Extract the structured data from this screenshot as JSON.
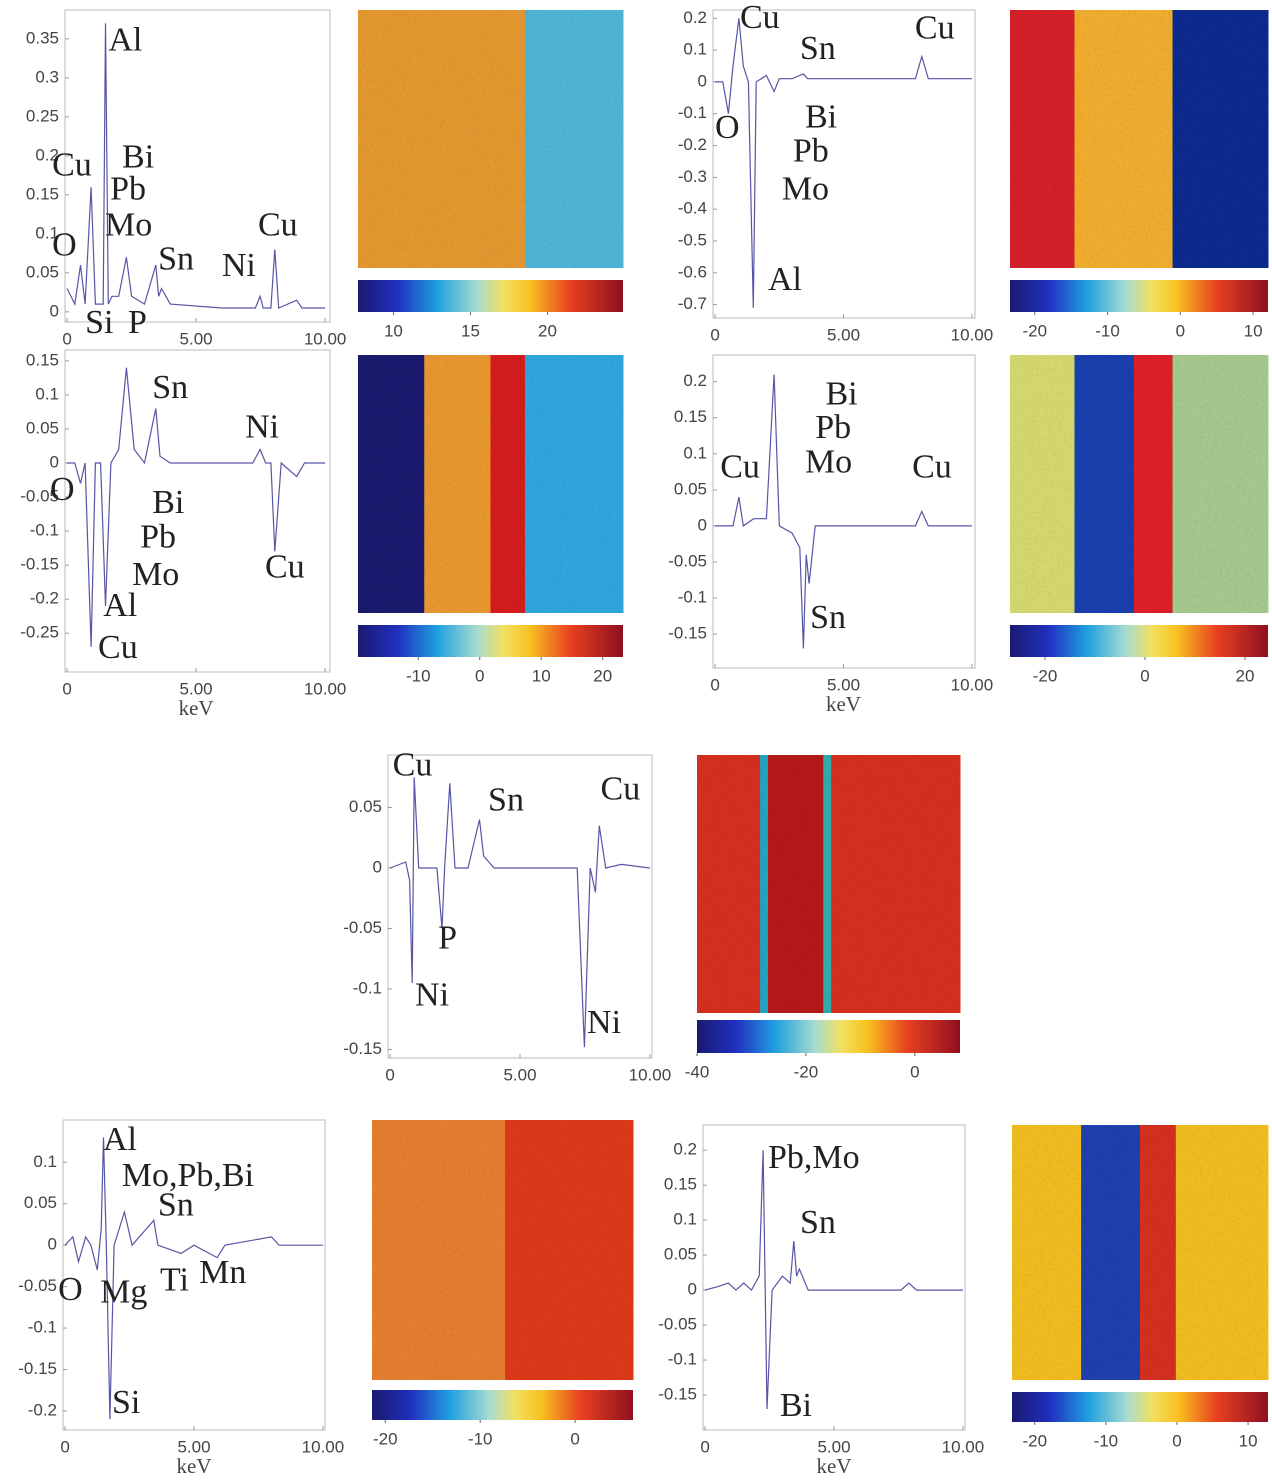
{
  "chart_data": [
    {
      "type": "line",
      "color": "#5656a6",
      "x": [
        0,
        0.3,
        0.52,
        0.7,
        0.93,
        1.1,
        1.4,
        1.49,
        1.6,
        1.74,
        2.0,
        2.3,
        2.5,
        3.0,
        3.44,
        3.55,
        3.66,
        4,
        6,
        7.3,
        7.48,
        7.6,
        7.9,
        8.05,
        8.2,
        8.9,
        9.1,
        10
      ],
      "values": [
        0.03,
        0.01,
        0.06,
        0.01,
        0.16,
        0.01,
        0.01,
        0.37,
        0.01,
        0.02,
        0.02,
        0.07,
        0.02,
        0.01,
        0.06,
        0.02,
        0.03,
        0.01,
        0.005,
        0.005,
        0.02,
        0.005,
        0.005,
        0.08,
        0.005,
        0.015,
        0.005,
        0.005
      ],
      "xlim": [
        -0.08,
        10.19
      ],
      "ylim": [
        -0.013,
        0.387
      ],
      "xticks": [
        0,
        {
          "value": 5,
          "label": "5.00"
        },
        {
          "value": 10,
          "label": "10.00"
        }
      ],
      "yticks": [
        0,
        0.05,
        0.1,
        0.15,
        0.2,
        0.25,
        0.3,
        0.35
      ],
      "annotations": [
        {
          "text": "Al",
          "x": 1.6,
          "y": 0.345
        },
        {
          "text": "Bi",
          "x": 2.13,
          "y": 0.195
        },
        {
          "text": "Cu",
          "x": -0.58,
          "y": 0.185
        },
        {
          "text": "Pb",
          "x": 1.67,
          "y": 0.154
        },
        {
          "text": "Mo",
          "x": 1.47,
          "y": 0.108
        },
        {
          "text": "O",
          "x": -0.58,
          "y": 0.082
        },
        {
          "text": "Sn",
          "x": 3.53,
          "y": 0.064
        },
        {
          "text": "Ni",
          "x": 6.0,
          "y": 0.056
        },
        {
          "text": "Cu",
          "x": 7.4,
          "y": 0.108
        },
        {
          "text": "Si",
          "x": 0.7,
          "y": -0.017
        },
        {
          "text": "P",
          "x": 2.36,
          "y": -0.017
        }
      ]
    },
    {
      "type": "colorbar",
      "lim": [
        7.7,
        24.9
      ],
      "ticks": [
        10,
        15,
        20
      ]
    },
    {
      "type": "line",
      "color": "#5656a6",
      "x": [
        0,
        0.3,
        0.52,
        0.7,
        0.93,
        1.1,
        1.3,
        1.49,
        1.6,
        2.0,
        2.3,
        2.5,
        3.0,
        3.44,
        3.6,
        4,
        7.8,
        8.05,
        8.3,
        8.9,
        10
      ],
      "values": [
        0,
        0,
        -0.1,
        0.05,
        0.2,
        0.05,
        0,
        -0.71,
        0,
        0.02,
        -0.03,
        0.01,
        0.01,
        0.025,
        0.01,
        0.01,
        0.01,
        0.08,
        0.01,
        0.01,
        0.01
      ],
      "xlim": [
        -0.08,
        10.12
      ],
      "ylim": [
        -0.742,
        0.226
      ],
      "xticks": [
        0,
        {
          "value": 5,
          "label": "5.00"
        },
        {
          "value": 10,
          "label": "10.00"
        }
      ],
      "yticks": [
        0.2,
        0.1,
        0,
        -0.1,
        -0.2,
        -0.3,
        -0.4,
        -0.5,
        -0.6,
        -0.7
      ],
      "annotations": [
        {
          "text": "Cu",
          "x": 0.97,
          "y": 0.194
        },
        {
          "text": "Sn",
          "x": 3.3,
          "y": 0.097
        },
        {
          "text": "Cu",
          "x": 7.78,
          "y": 0.161
        },
        {
          "text": "O",
          "x": 0.0,
          "y": -0.152
        },
        {
          "text": "Bi",
          "x": 3.5,
          "y": -0.119
        },
        {
          "text": "Pb",
          "x": 3.03,
          "y": -0.226
        },
        {
          "text": "Mo",
          "x": 2.6,
          "y": -0.345
        },
        {
          "text": "Al",
          "x": 2.06,
          "y": -0.629
        }
      ]
    },
    {
      "type": "colorbar",
      "lim": [
        -23.4,
        12.05
      ],
      "ticks": [
        -20,
        -10,
        0,
        10
      ]
    },
    {
      "type": "line",
      "color": "#5656a6",
      "xlabel": "keV",
      "x": [
        0,
        0.3,
        0.52,
        0.7,
        0.93,
        1.1,
        1.3,
        1.49,
        1.7,
        2.0,
        2.3,
        2.6,
        3.0,
        3.44,
        3.6,
        4,
        7.2,
        7.48,
        7.7,
        7.9,
        8.05,
        8.3,
        8.9,
        9.2,
        10
      ],
      "values": [
        0,
        0,
        -0.03,
        0,
        -0.27,
        0,
        0,
        -0.21,
        0,
        0.02,
        0.14,
        0.02,
        0,
        0.08,
        0.01,
        0,
        0,
        0.02,
        0,
        0,
        -0.13,
        0,
        -0.02,
        0,
        0
      ],
      "xlim": [
        -0.08,
        10.19
      ],
      "ylim": [
        -0.307,
        0.166
      ],
      "xticks": [
        0,
        {
          "value": 5,
          "label": "5.00"
        },
        {
          "value": 10,
          "label": "10.00"
        }
      ],
      "yticks": [
        0.15,
        0.1,
        0.05,
        0,
        -0.05,
        -0.1,
        -0.15,
        -0.2,
        -0.25
      ],
      "annotations": [
        {
          "text": "Sn",
          "x": 3.3,
          "y": 0.107
        },
        {
          "text": "Ni",
          "x": 6.9,
          "y": 0.049
        },
        {
          "text": "O",
          "x": -0.66,
          "y": -0.043
        },
        {
          "text": "Bi",
          "x": 3.3,
          "y": -0.062
        },
        {
          "text": "Pb",
          "x": 2.83,
          "y": -0.113
        },
        {
          "text": "Mo",
          "x": 2.52,
          "y": -0.168
        },
        {
          "text": "Al",
          "x": 1.4,
          "y": -0.213
        },
        {
          "text": "Cu",
          "x": 1.2,
          "y": -0.275
        },
        {
          "text": "Cu",
          "x": 7.67,
          "y": -0.157
        }
      ]
    },
    {
      "type": "colorbar",
      "lim": [
        -19.8,
        23.3
      ],
      "ticks": [
        -10,
        0,
        10,
        20
      ]
    },
    {
      "type": "line",
      "color": "#5656a6",
      "xlabel": "keV",
      "x": [
        0,
        0.7,
        0.93,
        1.1,
        1.5,
        1.8,
        2.0,
        2.3,
        2.5,
        3.0,
        3.3,
        3.44,
        3.55,
        3.66,
        3.9,
        4.5,
        7.8,
        8.05,
        8.3,
        10
      ],
      "values": [
        0,
        0,
        0.04,
        0,
        0.01,
        0.01,
        0.01,
        0.21,
        0,
        -0.01,
        -0.03,
        -0.17,
        -0.04,
        -0.08,
        0,
        0,
        0,
        0.02,
        0,
        0
      ],
      "xlim": [
        -0.08,
        10.12
      ],
      "ylim": [
        -0.197,
        0.237
      ],
      "xticks": [
        0,
        {
          "value": 5,
          "label": "5.00"
        },
        {
          "value": 10,
          "label": "10.00"
        }
      ],
      "yticks": [
        0.2,
        0.15,
        0.1,
        0.05,
        0,
        -0.05,
        -0.1,
        -0.15
      ],
      "annotations": [
        {
          "text": "Bi",
          "x": 4.3,
          "y": 0.179
        },
        {
          "text": "Pb",
          "x": 3.9,
          "y": 0.133
        },
        {
          "text": "Mo",
          "x": 3.5,
          "y": 0.085
        },
        {
          "text": "Cu",
          "x": 0.2,
          "y": 0.078
        },
        {
          "text": "Cu",
          "x": 7.67,
          "y": 0.078
        },
        {
          "text": "Sn",
          "x": 3.7,
          "y": -0.131
        }
      ]
    },
    {
      "type": "colorbar",
      "lim": [
        -27,
        24.6
      ],
      "ticks": [
        -20,
        0,
        20
      ]
    },
    {
      "type": "line",
      "color": "#5656a6",
      "x": [
        0,
        0.6,
        0.75,
        0.85,
        0.93,
        1.1,
        1.5,
        1.8,
        2.0,
        2.1,
        2.3,
        2.5,
        3.0,
        3.44,
        3.6,
        4,
        7.2,
        7.48,
        7.7,
        7.9,
        8.05,
        8.3,
        8.9,
        10
      ],
      "values": [
        0,
        0.005,
        -0.01,
        -0.095,
        0.075,
        0,
        0,
        0,
        -0.05,
        0,
        0.07,
        0,
        0,
        0.04,
        0.01,
        0,
        0,
        -0.148,
        0,
        -0.02,
        0.035,
        0,
        0.003,
        0
      ],
      "xlim": [
        -0.08,
        10.08
      ],
      "ylim": [
        -0.157,
        0.0934
      ],
      "xticks": [
        0,
        {
          "value": 5,
          "label": "5.00"
        },
        {
          "value": 10,
          "label": "10.00"
        }
      ],
      "yticks": [
        0.05,
        0,
        -0.05,
        -0.1,
        -0.15
      ],
      "annotations": [
        {
          "text": "Cu",
          "x": 0.1,
          "y": 0.083
        },
        {
          "text": "Sn",
          "x": 3.77,
          "y": 0.054
        },
        {
          "text": "Cu",
          "x": 8.1,
          "y": 0.063
        },
        {
          "text": "P",
          "x": 1.85,
          "y": -0.06
        },
        {
          "text": "Ni",
          "x": 0.96,
          "y": -0.107
        },
        {
          "text": "Ni",
          "x": 7.58,
          "y": -0.13
        }
      ]
    },
    {
      "type": "colorbar",
      "lim": [
        -40,
        8.3
      ],
      "ticks": [
        -40,
        -20,
        0
      ]
    },
    {
      "type": "line",
      "color": "#5656a6",
      "xlabel": "keV",
      "x": [
        0,
        0.3,
        0.52,
        0.8,
        1.0,
        1.25,
        1.4,
        1.49,
        1.6,
        1.74,
        1.9,
        2.3,
        2.6,
        3.44,
        3.6,
        4.5,
        5.0,
        5.9,
        6.2,
        8.0,
        8.3,
        10
      ],
      "values": [
        0,
        0.01,
        -0.02,
        0.01,
        0,
        -0.03,
        0.02,
        0.13,
        0,
        -0.21,
        0,
        0.04,
        0,
        0.03,
        0,
        -0.01,
        0,
        -0.015,
        0,
        0.01,
        0,
        0
      ],
      "xlim": [
        -0.08,
        10.08
      ],
      "ylim": [
        -0.223,
        0.151
      ],
      "xticks": [
        0,
        {
          "value": 5,
          "label": "5.00"
        },
        {
          "value": 10,
          "label": "10.00"
        }
      ],
      "yticks": [
        0.1,
        0.05,
        0,
        -0.05,
        -0.1,
        -0.15,
        -0.2
      ],
      "annotations": [
        {
          "text": "Al",
          "x": 1.47,
          "y": 0.124
        },
        {
          "text": "Mo,Pb,Bi",
          "x": 2.2,
          "y": 0.081
        },
        {
          "text": "Sn",
          "x": 3.6,
          "y": 0.045
        },
        {
          "text": "Ti",
          "x": 3.68,
          "y": -0.045
        },
        {
          "text": "Mn",
          "x": 5.2,
          "y": -0.036
        },
        {
          "text": "O",
          "x": -0.27,
          "y": -0.057
        },
        {
          "text": "Mg",
          "x": 1.36,
          "y": -0.06
        },
        {
          "text": "Si",
          "x": 1.82,
          "y": -0.193
        }
      ]
    },
    {
      "type": "colorbar",
      "lim": [
        -21.4,
        6.1
      ],
      "ticks": [
        -20,
        -10,
        0
      ]
    },
    {
      "type": "line",
      "color": "#5656a6",
      "xlabel": "keV",
      "x": [
        0,
        0.5,
        0.9,
        1.2,
        1.5,
        1.8,
        2.1,
        2.25,
        2.4,
        2.6,
        3.0,
        3.3,
        3.44,
        3.55,
        3.66,
        4.0,
        7.6,
        7.9,
        8.2,
        10
      ],
      "values": [
        0,
        0.005,
        0.01,
        0,
        0.01,
        0,
        0.02,
        0.2,
        -0.17,
        0,
        0.02,
        0.01,
        0.07,
        0.02,
        0.03,
        0,
        0,
        0.01,
        0,
        0
      ],
      "xlim": [
        -0.08,
        10.08
      ],
      "ylim": [
        -0.2,
        0.236
      ],
      "xticks": [
        0,
        {
          "value": 5,
          "label": "5.00"
        },
        {
          "value": 10,
          "label": "10.00"
        }
      ],
      "yticks": [
        0.2,
        0.15,
        0.1,
        0.05,
        0,
        -0.05,
        -0.1,
        -0.15
      ],
      "annotations": [
        {
          "text": "Pb,Mo",
          "x": 2.44,
          "y": 0.186
        },
        {
          "text": "Sn",
          "x": 3.68,
          "y": 0.093
        },
        {
          "text": "Bi",
          "x": 2.9,
          "y": -0.169
        }
      ]
    },
    {
      "type": "colorbar",
      "lim": [
        -23.2,
        12.8
      ],
      "ticks": [
        -20,
        -10,
        0,
        10
      ]
    }
  ]
}
